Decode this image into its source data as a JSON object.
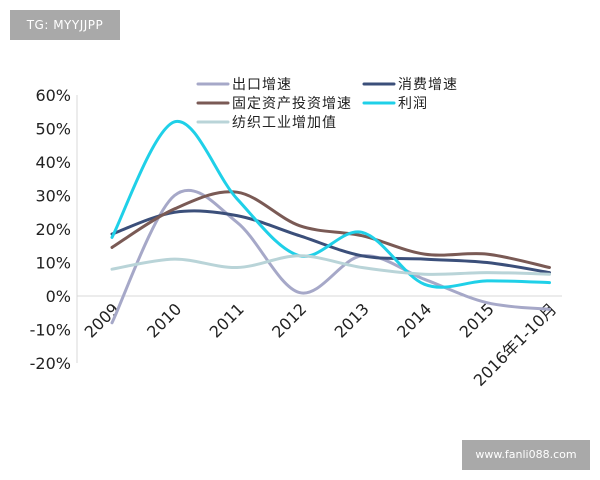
{
  "watermarks": {
    "top_left": "TG: MYYJJPP",
    "bottom_right": "www.fanli088.com"
  },
  "chart_data": {
    "type": "line",
    "title": "",
    "xlabel": "",
    "ylabel": "",
    "x": [
      "2009",
      "2010",
      "2011",
      "2012",
      "2013",
      "2014",
      "2015",
      "2016年1-10月"
    ],
    "ylim": [
      -20,
      60
    ],
    "yticks": [
      -20,
      -10,
      0,
      10,
      20,
      30,
      40,
      50,
      60
    ],
    "ytick_labels": [
      "-20%",
      "-10%",
      "0%",
      "10%",
      "20%",
      "30%",
      "40%",
      "50%",
      "60%"
    ],
    "grid": false,
    "legend_position": "top",
    "smooth": true,
    "series": [
      {
        "name": "出口增速",
        "color": "#a6a8c8",
        "values": [
          -8,
          30,
          22,
          1,
          12,
          5,
          -2,
          -4
        ]
      },
      {
        "name": "消费增速",
        "color": "#3b4f7a",
        "values": [
          18.5,
          25,
          24,
          18,
          12,
          11,
          10,
          7
        ]
      },
      {
        "name": "固定资产投资增速",
        "color": "#7a5a55",
        "values": [
          14.5,
          26,
          31,
          21,
          18,
          12.5,
          12.5,
          8.5
        ]
      },
      {
        "name": "利润",
        "color": "#1fd0e8",
        "values": [
          17.5,
          52,
          29,
          12,
          19,
          3.5,
          4.5,
          4
        ]
      },
      {
        "name": "纺织工业增加值",
        "color": "#b9d4d8",
        "values": [
          8,
          11,
          8.5,
          12,
          8.5,
          6.5,
          7,
          6.5
        ]
      }
    ]
  }
}
